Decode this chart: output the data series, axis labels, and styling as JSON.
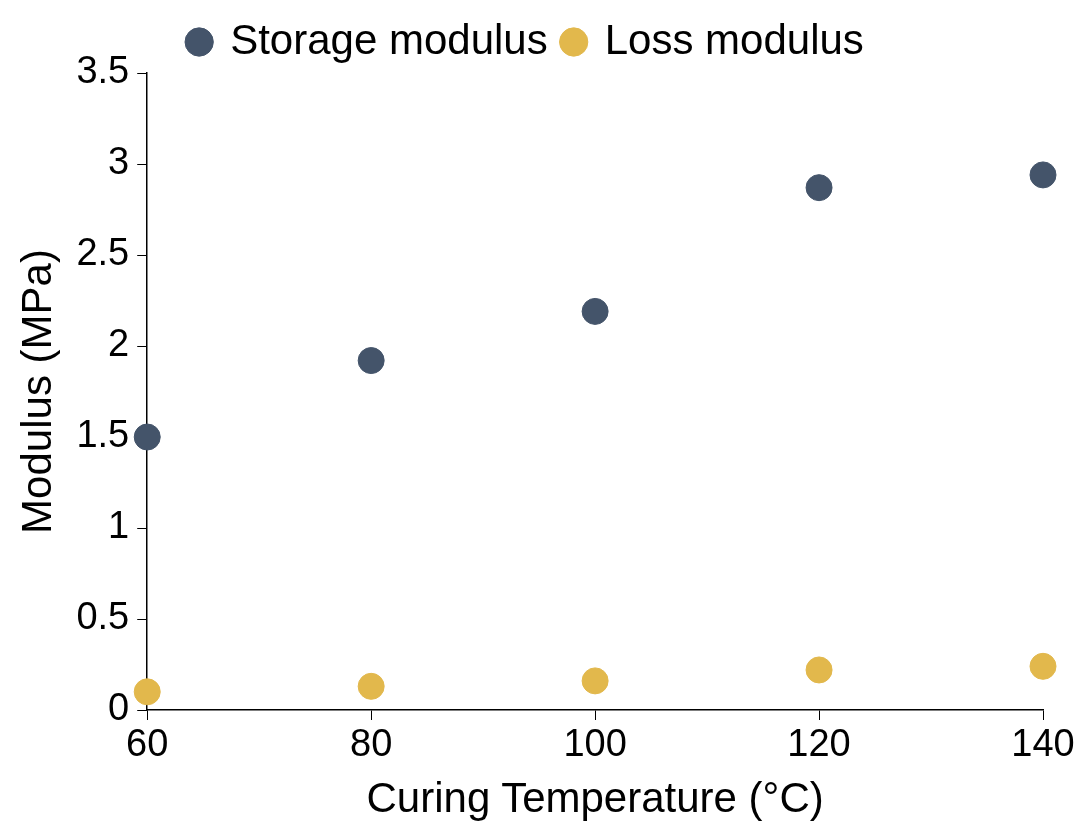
{
  "chart_data": {
    "type": "scatter",
    "xlabel": "Curing Temperature (°C)",
    "ylabel": "Modulus (MPa)",
    "x": [
      60,
      80,
      100,
      120,
      140
    ],
    "series": [
      {
        "name": "Storage modulus",
        "color": "#44546a",
        "values": [
          1.5,
          1.92,
          2.19,
          2.87,
          2.94
        ]
      },
      {
        "name": "Loss modulus",
        "color": "#e2b84c",
        "values": [
          0.1,
          0.13,
          0.16,
          0.22,
          0.24
        ]
      }
    ],
    "xlim": [
      60,
      140
    ],
    "xticks": [
      60,
      80,
      100,
      120,
      140
    ],
    "ylim": [
      0,
      3.5
    ],
    "yticks": [
      0,
      0.5,
      1,
      1.5,
      2,
      2.5,
      3,
      3.5
    ],
    "grid": false,
    "legend": "top",
    "marker": "circle"
  }
}
